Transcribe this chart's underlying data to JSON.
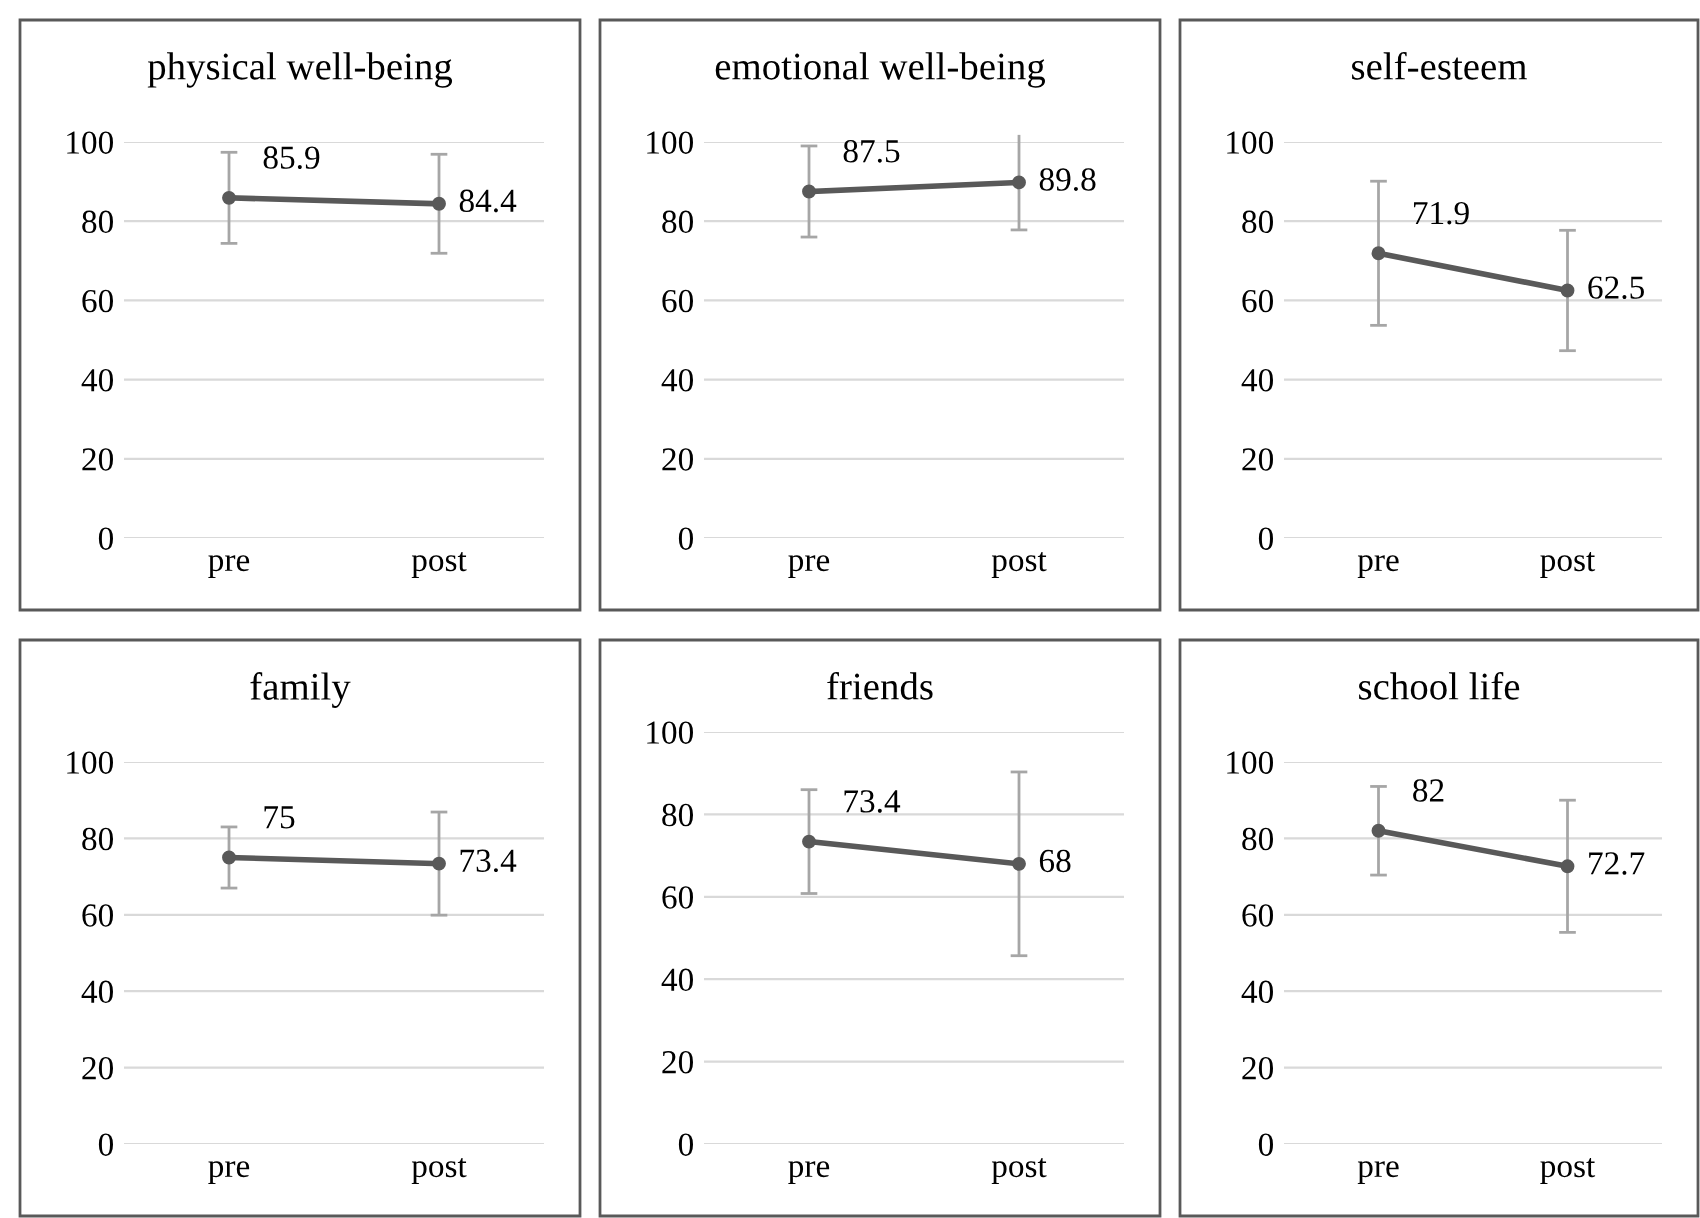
{
  "chart_data": [
    {
      "type": "line",
      "title": "physical well-being",
      "categories": [
        "pre",
        "post"
      ],
      "series": [
        {
          "color": "#595959",
          "values": [
            85.9,
            84.4
          ],
          "errors": [
            11.5,
            12.5
          ]
        }
      ],
      "ylim": [
        0,
        100
      ],
      "yticks": [
        0,
        20,
        40,
        60,
        80,
        100
      ],
      "grid": "y",
      "data_labels": true,
      "marker": "circle",
      "line_style": "solid"
    },
    {
      "type": "line",
      "title": "emotional well-being",
      "categories": [
        "pre",
        "post"
      ],
      "series": [
        {
          "color": "#595959",
          "values": [
            87.5,
            89.8
          ],
          "errors": [
            11.5,
            12
          ]
        }
      ],
      "ylim": [
        0,
        100
      ],
      "yticks": [
        0,
        20,
        40,
        60,
        80,
        100
      ],
      "grid": "y",
      "data_labels": true,
      "marker": "circle",
      "line_style": "solid"
    },
    {
      "type": "line",
      "title": "self-esteem",
      "categories": [
        "pre",
        "post"
      ],
      "series": [
        {
          "color": "#595959",
          "values": [
            71.9,
            62.5
          ],
          "errors": [
            18.2,
            15.2
          ]
        }
      ],
      "ylim": [
        0,
        100
      ],
      "yticks": [
        0,
        20,
        40,
        60,
        80,
        100
      ],
      "grid": "y",
      "data_labels": true,
      "marker": "circle",
      "line_style": "solid"
    },
    {
      "type": "line",
      "title": "family",
      "categories": [
        "pre",
        "post"
      ],
      "series": [
        {
          "color": "#595959",
          "values": [
            75,
            73.4
          ],
          "errors": [
            8,
            13.5
          ]
        }
      ],
      "ylim": [
        0,
        100
      ],
      "yticks": [
        0,
        20,
        40,
        60,
        80,
        100
      ],
      "grid": "y",
      "data_labels": true,
      "marker": "circle",
      "line_style": "solid"
    },
    {
      "type": "line",
      "title": "friends",
      "categories": [
        "pre",
        "post"
      ],
      "series": [
        {
          "color": "#595959",
          "values": [
            73.4,
            68
          ],
          "errors": [
            12.6,
            22.3
          ]
        }
      ],
      "ylim": [
        0,
        100
      ],
      "yticks": [
        0,
        20,
        40,
        60,
        80,
        100
      ],
      "grid": "y",
      "data_labels": true,
      "marker": "circle",
      "line_style": "solid"
    },
    {
      "type": "line",
      "title": "school life",
      "categories": [
        "pre",
        "post"
      ],
      "series": [
        {
          "color": "#595959",
          "values": [
            82,
            72.7
          ],
          "errors": [
            11.6,
            17.3
          ]
        }
      ],
      "ylim": [
        0,
        100
      ],
      "yticks": [
        0,
        20,
        40,
        60,
        80,
        100
      ],
      "grid": "y",
      "data_labels": true,
      "marker": "circle",
      "line_style": "solid"
    }
  ]
}
